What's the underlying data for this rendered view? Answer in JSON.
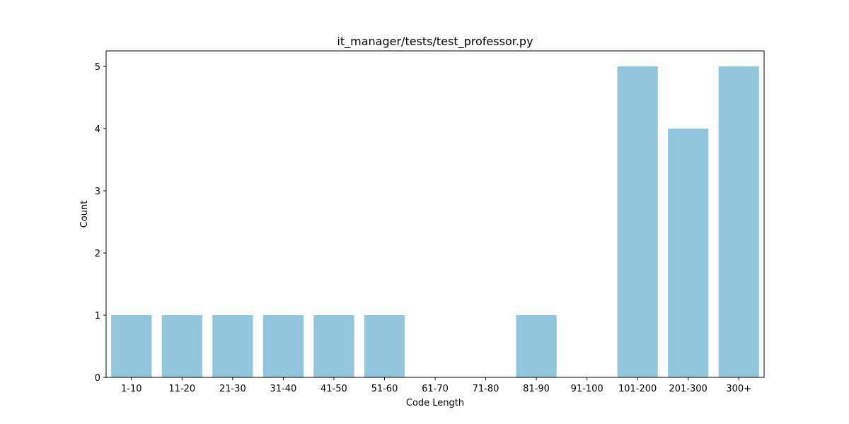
{
  "chart_data": {
    "type": "bar",
    "title": "it_manager/tests/test_professor.py",
    "xlabel": "Code Length",
    "ylabel": "Count",
    "categories": [
      "1-10",
      "11-20",
      "21-30",
      "31-40",
      "41-50",
      "51-60",
      "61-70",
      "71-80",
      "81-90",
      "91-100",
      "101-200",
      "201-300",
      "300+"
    ],
    "values": [
      1,
      1,
      1,
      1,
      1,
      1,
      0,
      0,
      1,
      0,
      5,
      4,
      5
    ],
    "ylim": [
      0,
      5.25
    ],
    "yticks": [
      "0",
      "1",
      "2",
      "3",
      "4",
      "5"
    ],
    "bar_color": "#92c5de",
    "grid": false,
    "legend": "none"
  }
}
